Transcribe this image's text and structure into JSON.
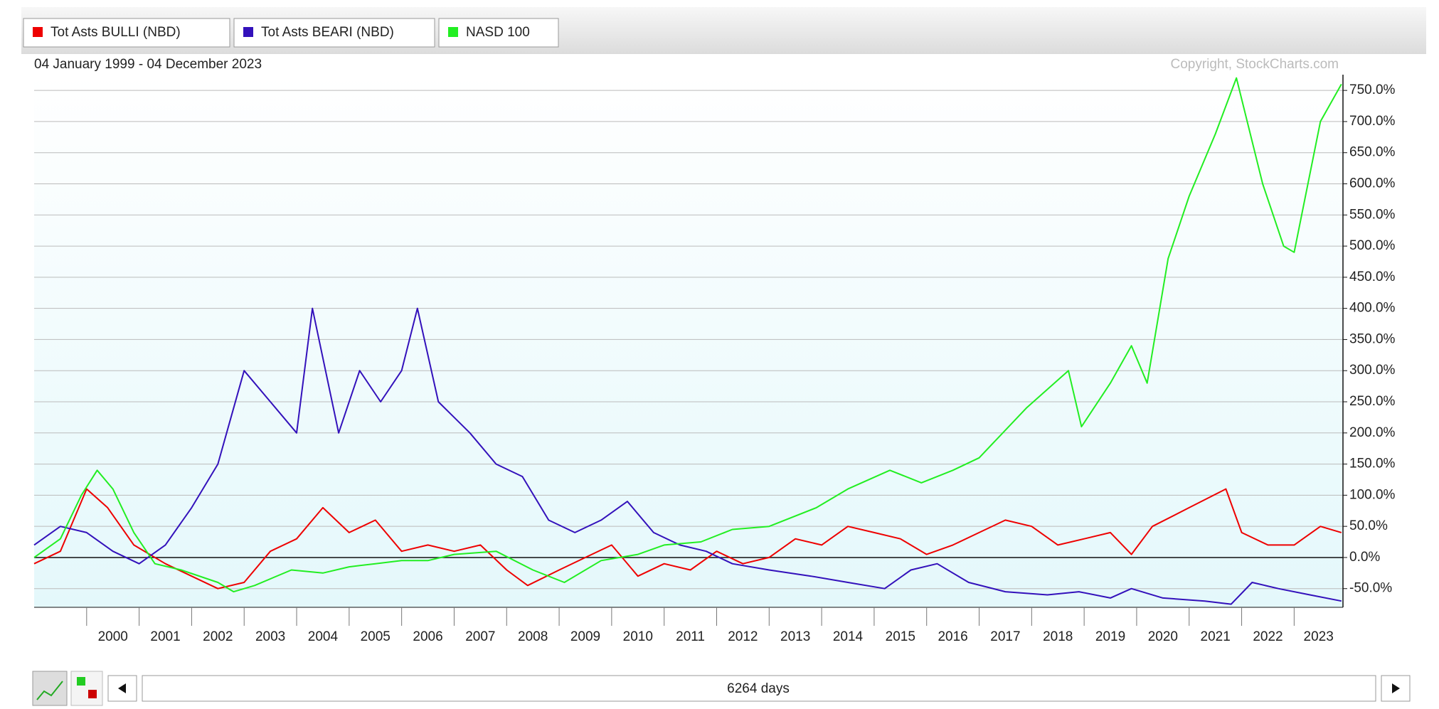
{
  "chart_data": {
    "type": "line",
    "date_range": "04 January 1999 - 04 December 2023",
    "copyright": "Copyright, StockCharts.com",
    "xlim": [
      1999.0,
      2023.93
    ],
    "xticks": [
      2000,
      2001,
      2002,
      2003,
      2004,
      2005,
      2006,
      2007,
      2008,
      2009,
      2010,
      2011,
      2012,
      2013,
      2014,
      2015,
      2016,
      2017,
      2018,
      2019,
      2020,
      2021,
      2022,
      2023
    ],
    "ylim": [
      -80,
      773
    ],
    "yticks": [
      {
        "value": -50,
        "label": "-50.0%"
      },
      {
        "value": 0,
        "label": "0.0%"
      },
      {
        "value": 50,
        "label": "50.0%"
      },
      {
        "value": 100,
        "label": "100.0%"
      },
      {
        "value": 150,
        "label": "150.0%"
      },
      {
        "value": 200,
        "label": "200.0%"
      },
      {
        "value": 250,
        "label": "250.0%"
      },
      {
        "value": 300,
        "label": "300.0%"
      },
      {
        "value": 350,
        "label": "350.0%"
      },
      {
        "value": 400,
        "label": "400.0%"
      },
      {
        "value": 450,
        "label": "450.0%"
      },
      {
        "value": 500,
        "label": "500.0%"
      },
      {
        "value": 550,
        "label": "550.0%"
      },
      {
        "value": 600,
        "label": "600.0%"
      },
      {
        "value": 650,
        "label": "650.0%"
      },
      {
        "value": 700,
        "label": "700.0%"
      },
      {
        "value": 750,
        "label": "750.0%"
      }
    ],
    "grid": true,
    "series": [
      {
        "name": "Tot Asts BULLI (NBD)",
        "color": "#ee0000",
        "x": [
          1999.0,
          1999.5,
          2000.0,
          2000.4,
          2000.9,
          2001.5,
          2002.0,
          2002.5,
          2003.0,
          2003.5,
          2004.0,
          2004.5,
          2005.0,
          2005.5,
          2006.0,
          2006.5,
          2007.0,
          2007.5,
          2008.0,
          2008.4,
          2009.0,
          2009.5,
          2010.0,
          2010.5,
          2011.0,
          2011.5,
          2012.0,
          2012.5,
          2013.0,
          2013.5,
          2014.0,
          2014.5,
          2015.0,
          2015.5,
          2016.0,
          2016.5,
          2017.0,
          2017.5,
          2018.0,
          2018.5,
          2019.0,
          2019.5,
          2019.9,
          2020.3,
          2021.0,
          2021.7,
          2022.0,
          2022.5,
          2023.0,
          2023.5,
          2023.9
        ],
        "values": [
          -10,
          10,
          110,
          80,
          20,
          -10,
          -30,
          -50,
          -40,
          10,
          30,
          80,
          40,
          60,
          10,
          20,
          10,
          20,
          -20,
          -45,
          -20,
          0,
          20,
          -30,
          -10,
          -20,
          10,
          -10,
          0,
          30,
          20,
          50,
          40,
          30,
          5,
          20,
          40,
          60,
          50,
          20,
          30,
          40,
          5,
          50,
          80,
          110,
          40,
          20,
          20,
          50,
          40
        ]
      },
      {
        "name": "Tot Asts BEARI (NBD)",
        "color": "#3311bb",
        "x": [
          1999.0,
          1999.5,
          2000.0,
          2000.5,
          2001.0,
          2001.5,
          2002.0,
          2002.5,
          2003.0,
          2003.5,
          2004.0,
          2004.3,
          2004.8,
          2005.2,
          2005.6,
          2006.0,
          2006.3,
          2006.7,
          2007.3,
          2007.8,
          2008.3,
          2008.8,
          2009.3,
          2009.8,
          2010.3,
          2010.8,
          2011.3,
          2011.8,
          2012.3,
          2013.0,
          2013.8,
          2014.5,
          2015.2,
          2015.7,
          2016.2,
          2016.8,
          2017.5,
          2018.3,
          2018.9,
          2019.5,
          2019.9,
          2020.5,
          2021.3,
          2021.8,
          2022.2,
          2022.7,
          2023.3,
          2023.9
        ],
        "values": [
          20,
          50,
          40,
          10,
          -10,
          20,
          80,
          150,
          300,
          250,
          200,
          400,
          200,
          300,
          250,
          300,
          400,
          250,
          200,
          150,
          130,
          60,
          40,
          60,
          90,
          40,
          20,
          10,
          -10,
          -20,
          -30,
          -40,
          -50,
          -20,
          -10,
          -40,
          -55,
          -60,
          -55,
          -65,
          -50,
          -65,
          -70,
          -75,
          -40,
          -50,
          -60,
          -70
        ]
      },
      {
        "name": "NASD 100",
        "color": "#22ee22",
        "x": [
          1999.0,
          1999.5,
          1999.9,
          2000.2,
          2000.5,
          2000.9,
          2001.3,
          2001.8,
          2002.5,
          2002.8,
          2003.2,
          2003.9,
          2004.5,
          2005.0,
          2005.5,
          2006.0,
          2006.5,
          2007.0,
          2007.8,
          2008.5,
          2009.1,
          2009.8,
          2010.5,
          2011.0,
          2011.7,
          2012.3,
          2013.0,
          2013.9,
          2014.5,
          2015.3,
          2015.9,
          2016.5,
          2017.0,
          2017.9,
          2018.7,
          2018.95,
          2019.5,
          2019.9,
          2020.2,
          2020.6,
          2021.0,
          2021.5,
          2021.9,
          2022.4,
          2022.8,
          2023.0,
          2023.5,
          2023.9
        ],
        "values": [
          0,
          30,
          100,
          140,
          110,
          40,
          -10,
          -20,
          -40,
          -55,
          -45,
          -20,
          -25,
          -15,
          -10,
          -5,
          -5,
          5,
          10,
          -20,
          -40,
          -5,
          5,
          20,
          25,
          45,
          50,
          80,
          110,
          140,
          120,
          140,
          160,
          240,
          300,
          210,
          280,
          340,
          280,
          480,
          580,
          680,
          770,
          600,
          500,
          490,
          700,
          760
        ]
      }
    ]
  },
  "controls": {
    "range_label": "6264 days"
  }
}
